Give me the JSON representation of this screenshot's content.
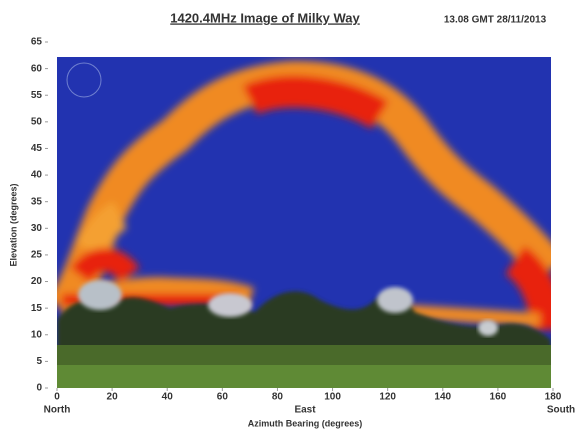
{
  "chart_data": {
    "type": "image",
    "title": "1420.4MHz Image of Milky Way",
    "subtitle": "13.08 GMT 28/11/2013",
    "x_label": "Azimuth Bearing (degrees)",
    "y_label": "Elevation (degrees)",
    "direction_labels": [
      "North",
      "East",
      "South"
    ],
    "xlim": [
      0,
      180
    ],
    "xticks": [
      0,
      20,
      40,
      60,
      80,
      100,
      120,
      140,
      160,
      180
    ],
    "ylim": [
      0,
      65
    ],
    "yticks": [
      0,
      5,
      10,
      15,
      20,
      25,
      30,
      35,
      40,
      45,
      50,
      55,
      60,
      65
    ]
  }
}
